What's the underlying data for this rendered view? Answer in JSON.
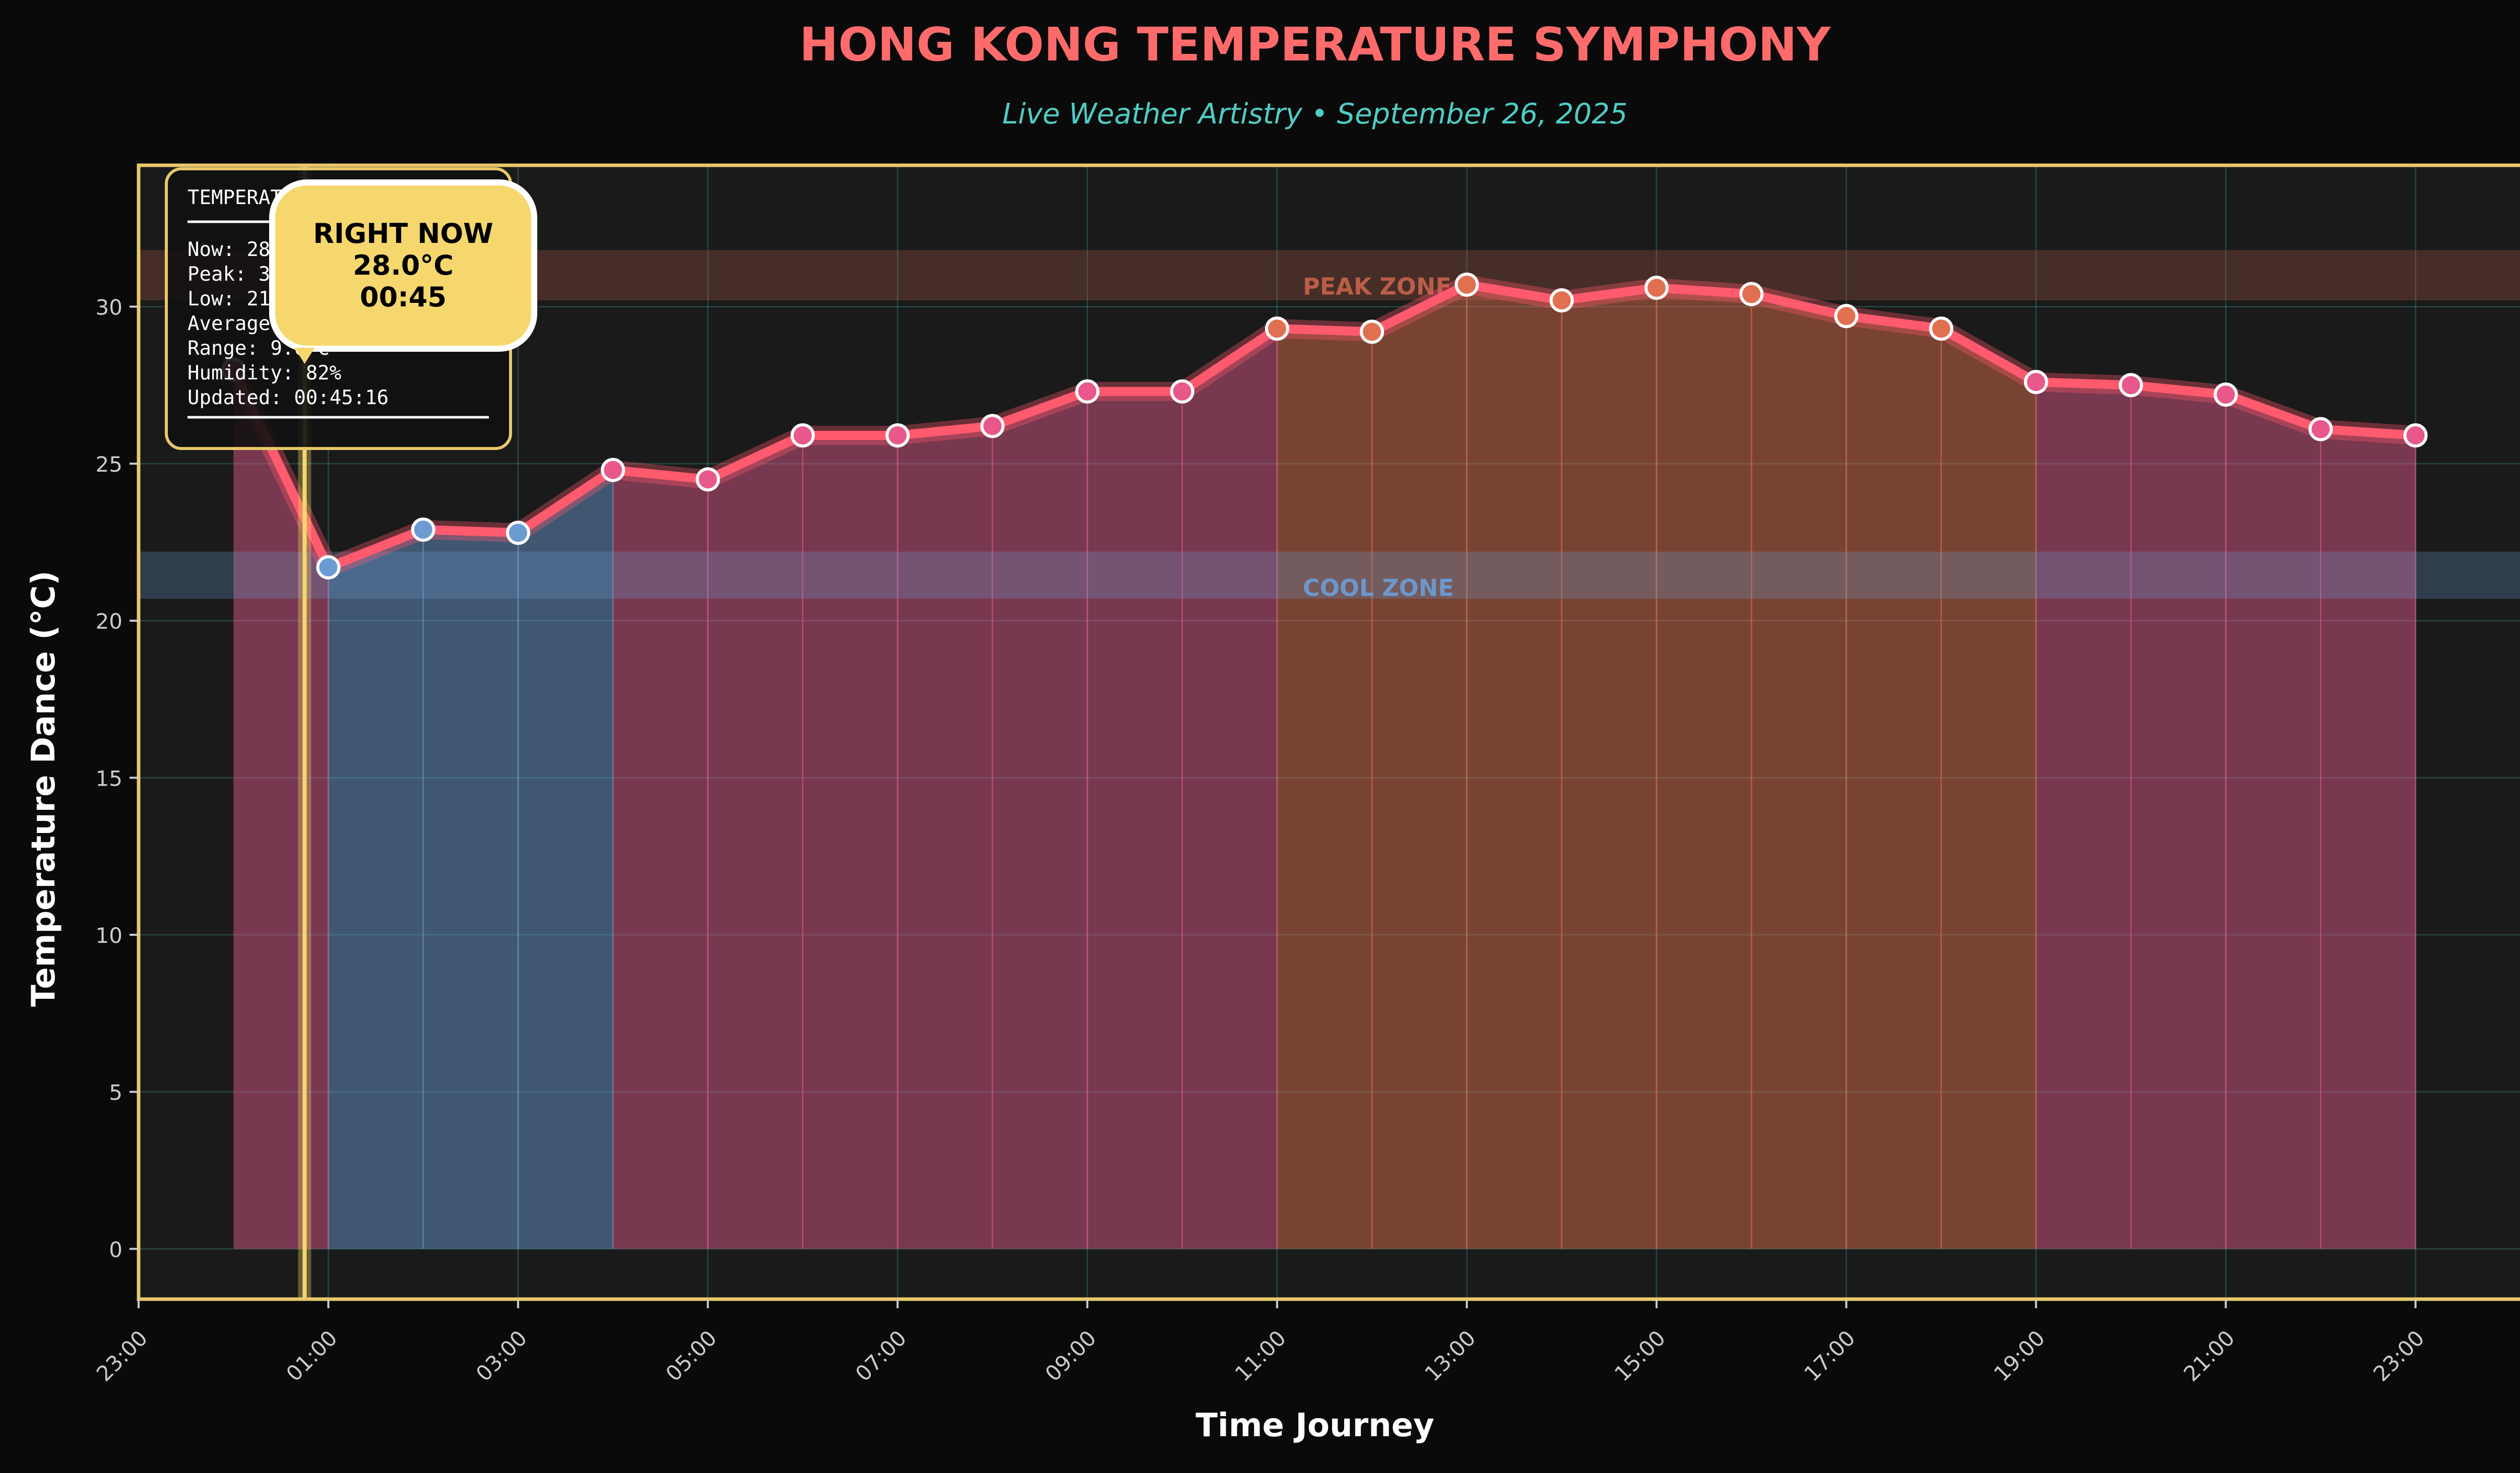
{
  "chart_data": {
    "type": "line",
    "title": "HONG KONG TEMPERATURE SYMPHONY",
    "subtitle": "Live Weather Artistry • September 26, 2025",
    "xlabel": "Time Journey",
    "ylabel": "Temperature Dance (°C)",
    "xlim": [
      "23:00",
      "24:15"
    ],
    "ylim": [
      -1.6,
      34.5
    ],
    "x_ticks": [
      "23:00",
      "01:00",
      "03:00",
      "05:00",
      "07:00",
      "09:00",
      "11:00",
      "13:00",
      "15:00",
      "17:00",
      "19:00",
      "21:00",
      "23:00"
    ],
    "y_ticks": [
      0,
      5,
      10,
      15,
      20,
      25,
      30
    ],
    "grid": true,
    "series": [
      {
        "x": [
          "00:00",
          "01:00",
          "02:00",
          "03:00",
          "04:00",
          "05:00",
          "06:00",
          "07:00",
          "08:00",
          "09:00",
          "10:00",
          "11:00",
          "12:00",
          "13:00",
          "14:00",
          "15:00",
          "16:00",
          "17:00",
          "18:00",
          "19:00",
          "20:00",
          "21:00",
          "22:00",
          "23:00"
        ],
        "values": [
          28.0,
          21.7,
          22.9,
          22.8,
          24.8,
          24.5,
          25.9,
          25.9,
          26.2,
          27.3,
          27.3,
          29.3,
          29.2,
          30.7,
          30.2,
          30.6,
          30.4,
          29.7,
          29.3,
          27.6,
          27.5,
          27.2,
          26.1,
          25.9
        ]
      }
    ],
    "zones": [
      {
        "label": "PEAK ZONE",
        "y_range": [
          30.2,
          31.8
        ],
        "color": "#c0604a"
      },
      {
        "label": "COOL ZONE",
        "y_range": [
          20.7,
          22.2
        ],
        "color": "#6b9bd1"
      }
    ],
    "current_marker": {
      "x": "00:45",
      "label": "RIGHT NOW",
      "value": "28.0°C",
      "time": "00:45"
    },
    "insights": {
      "title": "TEMPERATURE INSIGHTS",
      "lines": [
        "Now: 28.0°C",
        "Peak: 30.7°C",
        "Low: 21.7°C",
        "Average: 27.1°C",
        "Range: 9.0°C",
        "Humidity: 82%",
        "Updated: 00:45:16"
      ]
    },
    "colors": {
      "background": "#0a0a0a",
      "plot_bg": "#1a1a1a",
      "line": "#ff5a6e",
      "title": "#ff6b6b",
      "subtitle": "#4ecdc4",
      "frame": "#e8c86a",
      "cool": "#6b9bd1",
      "warm": "#e05a8a",
      "hot": "#e07050",
      "marker_box": "#f5d76e"
    }
  }
}
